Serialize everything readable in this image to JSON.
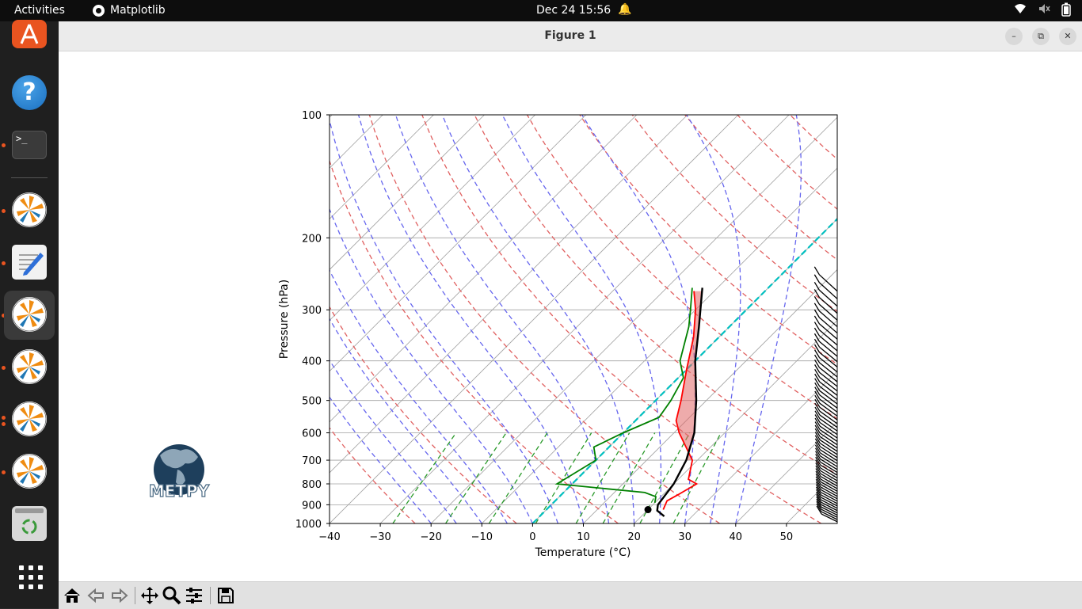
{
  "topbar": {
    "activities": "Activities",
    "app_name": "Matplotlib",
    "clock": "Dec 24  15:56"
  },
  "dock": {
    "items": [
      "ubuntu-software",
      "help",
      "terminal",
      "matplotlib",
      "text-editor",
      "matplotlib",
      "matplotlib",
      "matplotlib",
      "matplotlib",
      "trash",
      "show-applications"
    ]
  },
  "window": {
    "title": "Figure 1"
  },
  "logo": {
    "text": "MetPy"
  },
  "chart_data": {
    "type": "line",
    "title": "",
    "xlabel": "Temperature (°C)",
    "ylabel": "Pressure (hPa)",
    "xlim": [
      -40,
      60
    ],
    "ylim": [
      1000,
      100
    ],
    "y_scale": "log",
    "skew": "skew-T",
    "x_ticks": [
      "−40",
      "−30",
      "−20",
      "−10",
      "0",
      "10",
      "20",
      "30",
      "40",
      "50"
    ],
    "y_ticks": [
      "100",
      "200",
      "300",
      "400",
      "500",
      "600",
      "700",
      "800",
      "900",
      "1000"
    ],
    "grid": true,
    "series": [
      {
        "role": "temperature",
        "color": "#ff0000",
        "points": [
          [
            925,
            23
          ],
          [
            880,
            22
          ],
          [
            850,
            23
          ],
          [
            800,
            24.5
          ],
          [
            780,
            22
          ],
          [
            700,
            19
          ],
          [
            600,
            11
          ],
          [
            560,
            8
          ],
          [
            500,
            5
          ],
          [
            420,
            0
          ],
          [
            350,
            -5
          ],
          [
            300,
            -10
          ],
          [
            270,
            -14
          ]
        ]
      },
      {
        "role": "dewpoint",
        "color": "#008000",
        "points": [
          [
            890,
            20
          ],
          [
            860,
            19
          ],
          [
            840,
            16
          ],
          [
            800,
            -3
          ],
          [
            700,
            0
          ],
          [
            650,
            -3
          ],
          [
            600,
            0
          ],
          [
            550,
            4
          ],
          [
            500,
            3
          ],
          [
            440,
            1
          ],
          [
            400,
            -3
          ],
          [
            330,
            -8
          ],
          [
            300,
            -11
          ],
          [
            265,
            -15
          ]
        ]
      },
      {
        "role": "parcel",
        "color": "#000000",
        "points": [
          [
            960,
            24.5
          ],
          [
            930,
            22
          ],
          [
            900,
            21
          ],
          [
            800,
            20
          ],
          [
            700,
            17.8
          ],
          [
            600,
            14
          ],
          [
            500,
            8
          ],
          [
            400,
            0
          ],
          [
            330,
            -6
          ],
          [
            265,
            -13
          ]
        ]
      }
    ],
    "lcl": {
      "p": 925,
      "t": 20
    },
    "cape_fill_color": "#e06666",
    "barbs": "wind barbs along right edge, 1000–270 hPa"
  }
}
